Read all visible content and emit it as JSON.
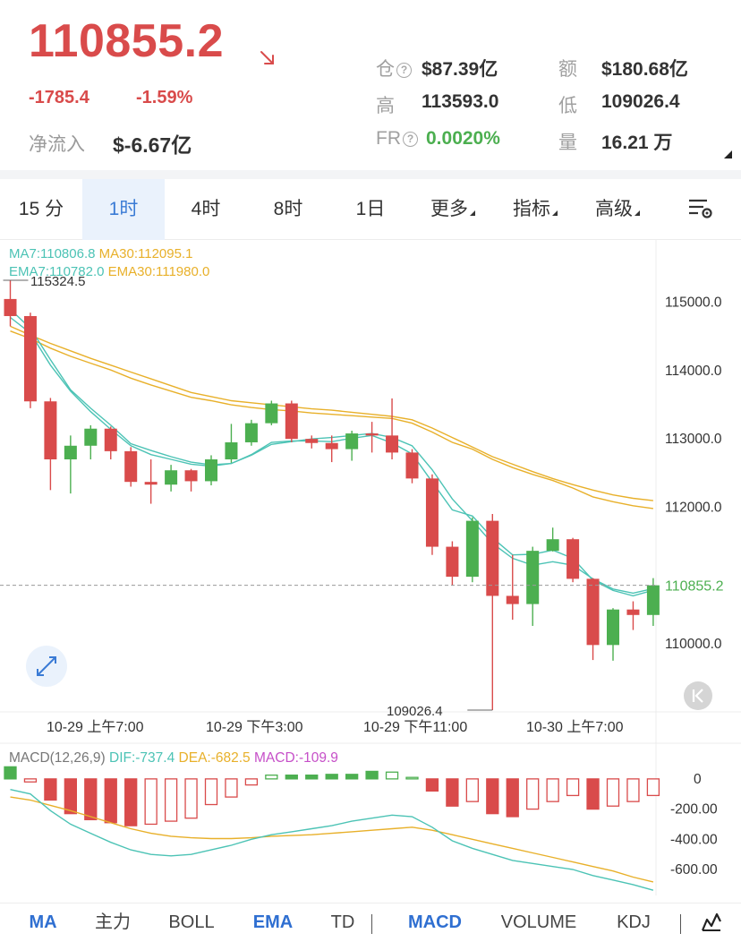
{
  "header": {
    "price": "110855.2",
    "change": "-1785.4",
    "change_pct": "-1.59%",
    "netflow_label": "净流入",
    "netflow_value": "$-6.67亿",
    "stats": {
      "oi_label": "仓",
      "oi_value": "$87.39亿",
      "turnover_label": "额",
      "turnover_value": "$180.68亿",
      "high_label": "高",
      "high_value": "113593.0",
      "low_label": "低",
      "low_value": "109026.4",
      "fr_label": "FR",
      "fr_value": "0.0020%",
      "vol_label": "量",
      "vol_value": "16.21 万"
    }
  },
  "tabs": [
    "15 分",
    "1时",
    "4时",
    "8时",
    "1日",
    "更多",
    "指标",
    "高级"
  ],
  "active_tab": "1时",
  "legend": {
    "ma7": "MA7:110806.8",
    "ma30": "MA30:112095.1",
    "ema7": "EMA7:110782.0",
    "ema30": "EMA30:111980.0"
  },
  "macd_legend": {
    "params": "MACD(12,26,9)",
    "dif": "DIF:-737.4",
    "dea": "DEA:-682.5",
    "macd": "MACD:-109.9"
  },
  "annotations": {
    "high": "115324.5",
    "low": "109026.4"
  },
  "colors": {
    "up": "#4caf50",
    "down": "#d94b4b",
    "ma7": "#4cc3b5",
    "ma30": "#e8b02a",
    "accent": "#3a7bd5",
    "macd_label": "#c64fc8"
  },
  "icons": {
    "arrow": "arrow-down-right-icon",
    "settings": "chart-settings-icon",
    "expand": "expand-icon",
    "back": "jump-to-latest-icon",
    "draw": "drawing-tool-icon"
  },
  "bottom_tabs": [
    "MA",
    "主力",
    "BOLL",
    "EMA",
    "TD",
    "MACD",
    "VOLUME",
    "KDJ"
  ],
  "bottom_active": [
    "MA",
    "EMA",
    "MACD"
  ],
  "chart_data": {
    "type": "candlestick",
    "interval": "1时",
    "ylim": [
      109026.4,
      115324.5
    ],
    "y_ticks": [
      "115000.0",
      "114000.0",
      "113000.0",
      "112000.0",
      "110000.0"
    ],
    "current_price": "110855.2",
    "x_ticks": [
      "10-29 上午7:00",
      "10-29 下午3:00",
      "10-29 下午11:00",
      "10-30 上午7:00"
    ],
    "candles": [
      {
        "o": 115050,
        "c": 114800,
        "h": 115324.5,
        "l": 114650
      },
      {
        "o": 114800,
        "c": 113550,
        "h": 114850,
        "l": 113450
      },
      {
        "o": 113550,
        "c": 112700,
        "h": 113600,
        "l": 112250
      },
      {
        "o": 112700,
        "c": 112900,
        "h": 113050,
        "l": 112200
      },
      {
        "o": 112900,
        "c": 113150,
        "h": 113200,
        "l": 112700
      },
      {
        "o": 113150,
        "c": 112820,
        "h": 113180,
        "l": 112700
      },
      {
        "o": 112820,
        "c": 112370,
        "h": 112880,
        "l": 112300
      },
      {
        "o": 112370,
        "c": 112330,
        "h": 112700,
        "l": 112050
      },
      {
        "o": 112330,
        "c": 112540,
        "h": 112620,
        "l": 112230
      },
      {
        "o": 112540,
        "c": 112380,
        "h": 112560,
        "l": 112230
      },
      {
        "o": 112380,
        "c": 112700,
        "h": 112760,
        "l": 112320
      },
      {
        "o": 112700,
        "c": 112950,
        "h": 113220,
        "l": 112650
      },
      {
        "o": 112950,
        "c": 113230,
        "h": 113280,
        "l": 112900
      },
      {
        "o": 113230,
        "c": 113520,
        "h": 113560,
        "l": 113200
      },
      {
        "o": 113520,
        "c": 113000,
        "h": 113560,
        "l": 112950
      },
      {
        "o": 113000,
        "c": 112940,
        "h": 113050,
        "l": 112860
      },
      {
        "o": 112940,
        "c": 112850,
        "h": 113050,
        "l": 112660
      },
      {
        "o": 112850,
        "c": 113080,
        "h": 113120,
        "l": 112680
      },
      {
        "o": 113080,
        "c": 113050,
        "h": 113250,
        "l": 112800
      },
      {
        "o": 113050,
        "c": 112800,
        "h": 113593,
        "l": 112700
      },
      {
        "o": 112800,
        "c": 112420,
        "h": 112850,
        "l": 112350
      },
      {
        "o": 112420,
        "c": 111420,
        "h": 112480,
        "l": 111300
      },
      {
        "o": 111420,
        "c": 110980,
        "h": 111500,
        "l": 110850
      },
      {
        "o": 110980,
        "c": 111800,
        "h": 111850,
        "l": 110900
      },
      {
        "o": 111800,
        "c": 110700,
        "h": 111900,
        "l": 109026.4
      },
      {
        "o": 110700,
        "c": 110580,
        "h": 111300,
        "l": 110350
      },
      {
        "o": 110580,
        "c": 111360,
        "h": 111420,
        "l": 110260
      },
      {
        "o": 111360,
        "c": 111530,
        "h": 111700,
        "l": 111350
      },
      {
        "o": 111530,
        "c": 110950,
        "h": 111550,
        "l": 110900
      },
      {
        "o": 110950,
        "c": 109980,
        "h": 110960,
        "l": 109760
      },
      {
        "o": 109980,
        "c": 110500,
        "h": 110520,
        "l": 109750
      },
      {
        "o": 110500,
        "c": 110420,
        "h": 110620,
        "l": 110200
      },
      {
        "o": 110420,
        "c": 110855.2,
        "h": 110960,
        "l": 110260
      }
    ],
    "ma7": [
      114900,
      114620,
      114160,
      113720,
      113450,
      113200,
      112930,
      112830,
      112740,
      112660,
      112620,
      112640,
      112760,
      112920,
      112960,
      113000,
      113020,
      113050,
      113080,
      113020,
      112900,
      112550,
      112120,
      111800,
      111470,
      111250,
      111150,
      111200,
      111150,
      110950,
      110800,
      110740,
      110806.8
    ],
    "ma30": [
      114650,
      114520,
      114400,
      114290,
      114180,
      114080,
      113980,
      113880,
      113780,
      113680,
      113620,
      113560,
      113530,
      113500,
      113470,
      113440,
      113420,
      113390,
      113360,
      113330,
      113280,
      113160,
      113020,
      112880,
      112740,
      112630,
      112520,
      112420,
      112330,
      112250,
      112180,
      112130,
      112095.1
    ],
    "ema7": [
      114780,
      114550,
      114080,
      113700,
      113400,
      113140,
      112900,
      112770,
      112700,
      112630,
      112600,
      112640,
      112770,
      112950,
      112970,
      112970,
      112960,
      113010,
      113050,
      112940,
      112780,
      112370,
      111960,
      111870,
      111550,
      111300,
      111310,
      111370,
      111250,
      110930,
      110780,
      110700,
      110782.0
    ],
    "ema30": [
      114580,
      114470,
      114330,
      114210,
      114110,
      114010,
      113890,
      113790,
      113700,
      113610,
      113560,
      113500,
      113460,
      113430,
      113410,
      113380,
      113360,
      113340,
      113320,
      113300,
      113230,
      113100,
      112950,
      112850,
      112700,
      112580,
      112480,
      112390,
      112280,
      112150,
      112080,
      112020,
      111980.0
    ],
    "macd": {
      "y_ticks": [
        "0",
        "-200.00",
        "-400.00",
        "-600.00"
      ],
      "histogram": [
        80,
        -20,
        -140,
        -230,
        -270,
        -290,
        -310,
        -300,
        -280,
        -260,
        -170,
        -120,
        -40,
        25,
        25,
        25,
        30,
        30,
        50,
        45,
        10,
        -80,
        -180,
        -150,
        -230,
        -250,
        -200,
        -150,
        -110,
        -200,
        -180,
        -150,
        -109.9
      ],
      "dif": [
        -70,
        -100,
        -210,
        -300,
        -360,
        -420,
        -470,
        -500,
        -510,
        -500,
        -470,
        -440,
        -400,
        -370,
        -350,
        -330,
        -310,
        -280,
        -260,
        -240,
        -250,
        -320,
        -410,
        -460,
        -500,
        -540,
        -560,
        -580,
        -600,
        -640,
        -670,
        -700,
        -737.4
      ],
      "dea": [
        -120,
        -140,
        -175,
        -210,
        -250,
        -290,
        -330,
        -360,
        -380,
        -390,
        -395,
        -395,
        -390,
        -380,
        -375,
        -370,
        -360,
        -350,
        -340,
        -330,
        -320,
        -340,
        -370,
        -400,
        -430,
        -460,
        -490,
        -520,
        -550,
        -580,
        -610,
        -650,
        -682.5
      ]
    }
  }
}
